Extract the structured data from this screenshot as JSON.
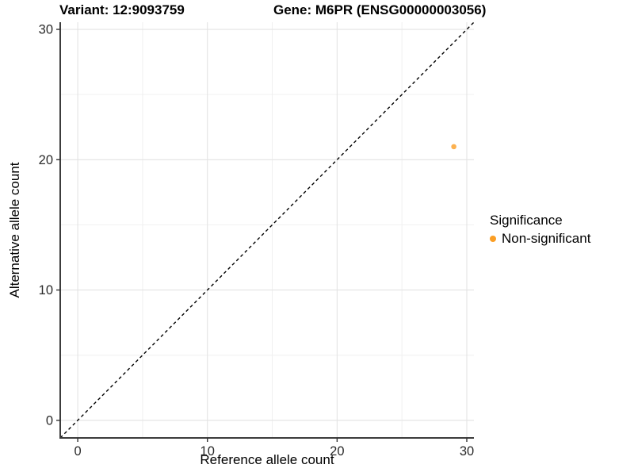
{
  "figure": {
    "title_left": "Variant: 12:9093759",
    "title_right": "Gene: M6PR (ENSG00000003056)"
  },
  "chart_data": {
    "type": "scatter",
    "title": "Variant: 12:9093759   Gene: M6PR (ENSG00000003056)",
    "xlabel": "Reference allele count",
    "ylabel": "Alternative allele count",
    "xlim": [
      -1.35,
      30.55
    ],
    "ylim": [
      -1.35,
      30.55
    ],
    "xticks": [
      0,
      10,
      20,
      30
    ],
    "yticks": [
      0,
      10,
      20,
      30
    ],
    "grid": {
      "major": true,
      "minor": true
    },
    "reference_line": {
      "slope": 1,
      "intercept": 0,
      "style": "dashed",
      "color": "#000000"
    },
    "series": [
      {
        "name": "Non-significant",
        "color": "#FB9E24",
        "points": [
          {
            "x": 29,
            "y": 21
          }
        ]
      }
    ],
    "legend": {
      "title": "Significance",
      "position": "right"
    }
  },
  "colors": {
    "background": "#FFFFFF",
    "grid_major": "#E3E3E3",
    "grid_minor": "#F0F0F0",
    "axis_line": "#3C3C3C",
    "tick_mark": "#333333",
    "tick_label": "#2B2B2B"
  }
}
